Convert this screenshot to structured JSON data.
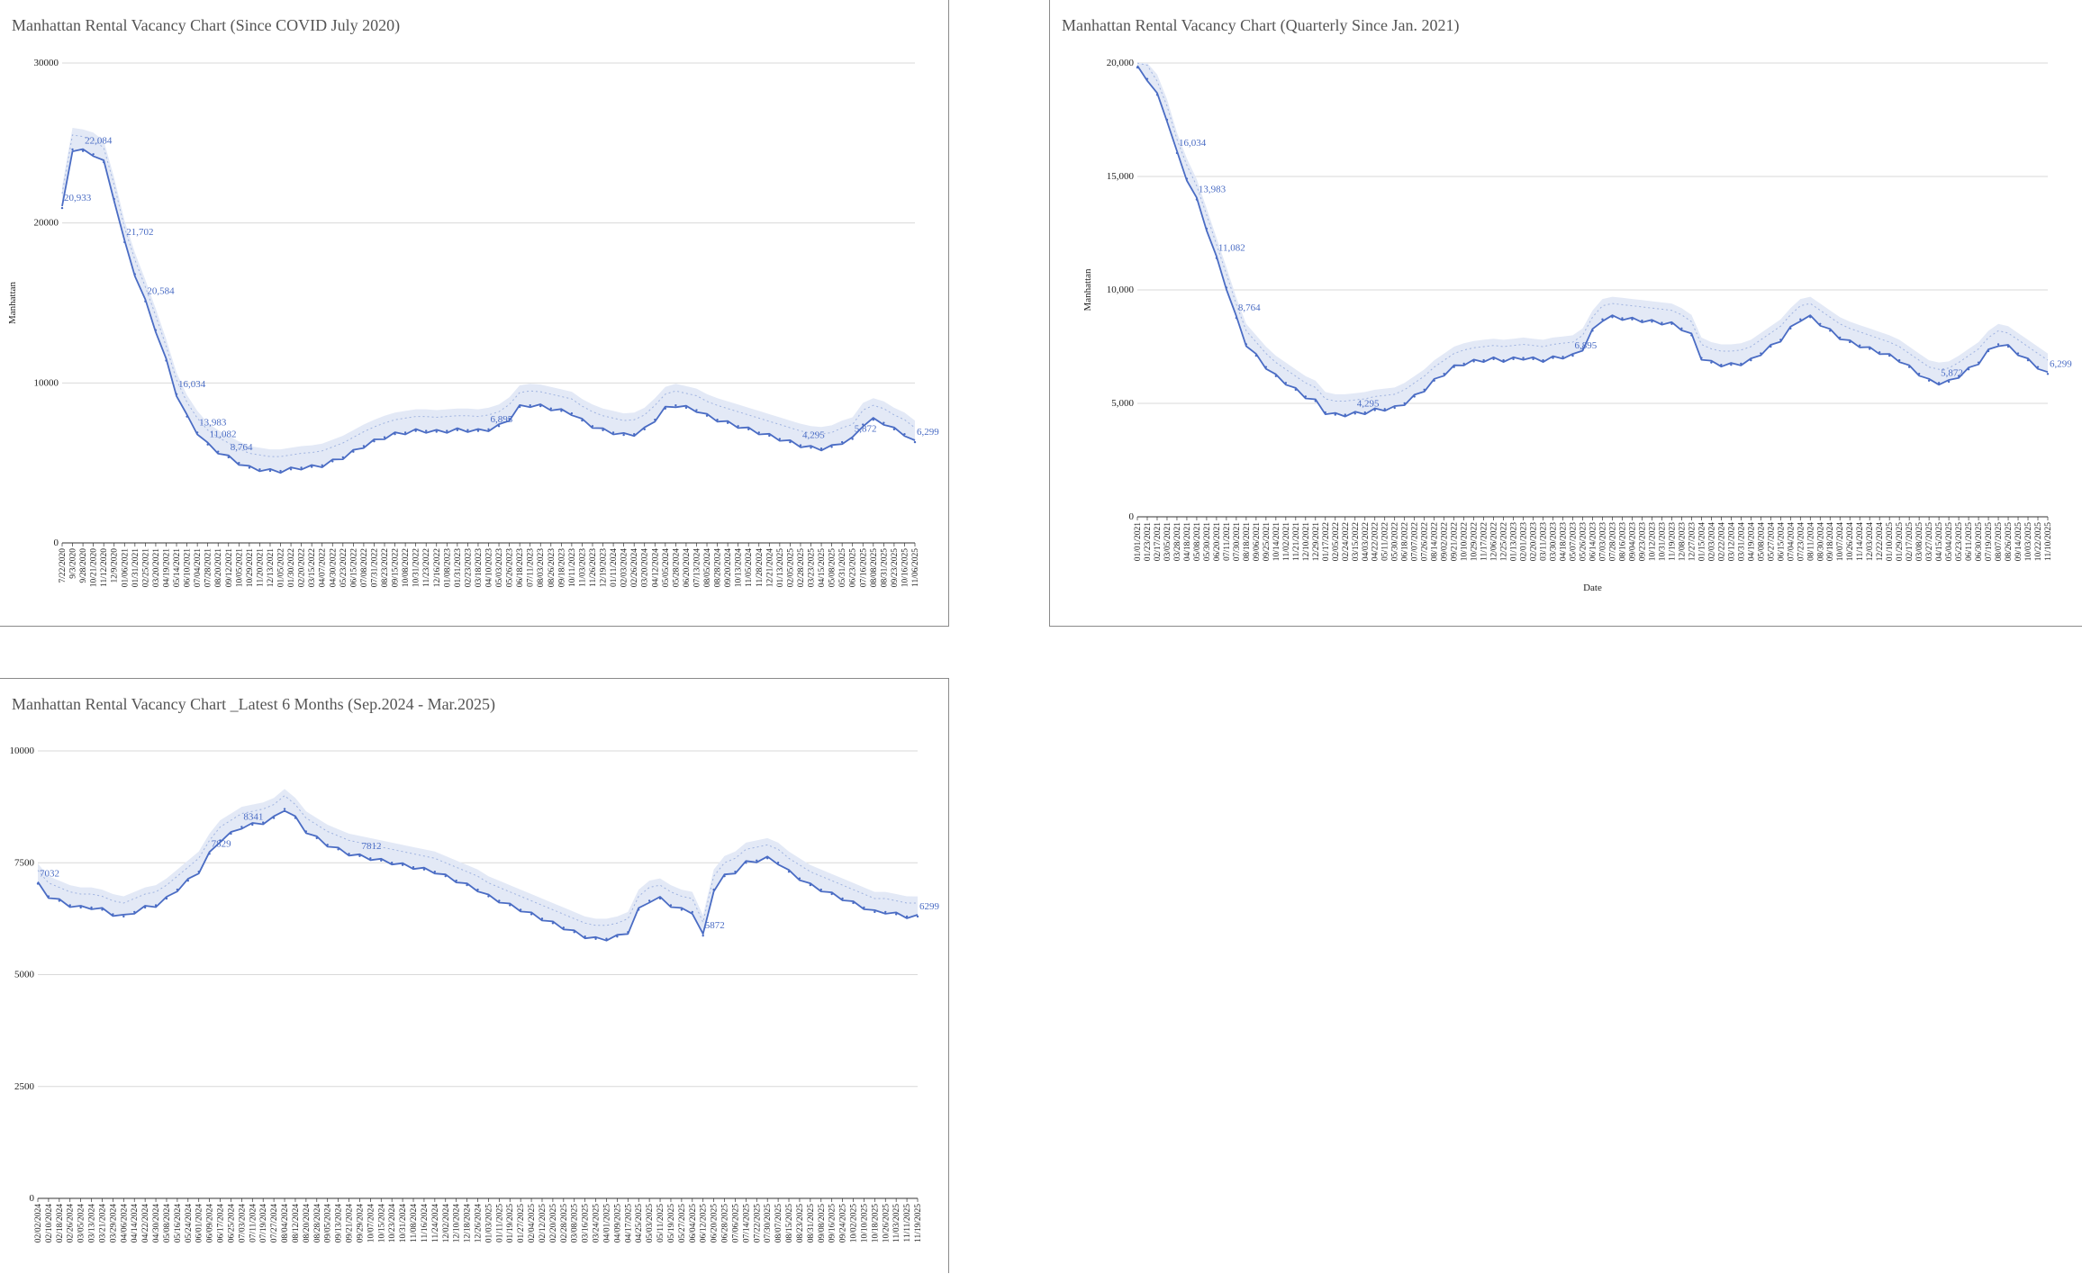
{
  "chart_data": [
    {
      "type": "line",
      "title": "Manhattan Rental Vacancy Chart (Since COVID July 2020)",
      "xlabel": "",
      "ylabel": "Manhattan",
      "ylim": [
        0,
        30000
      ],
      "yticks": [
        "0",
        "10000",
        "20000",
        "30000"
      ],
      "grid": true,
      "legend": "none",
      "line_color": "#4a6cc4",
      "band_color": "#e3e9f6",
      "x": [
        "7/22/2020",
        "9/3/2020",
        "9/28/2020",
        "10/21/2020",
        "11/12/2020",
        "12/9/2020",
        "01/06/2021",
        "01/31/2021",
        "02/25/2021",
        "03/20/2021",
        "04/19/2021",
        "05/14/2021",
        "06/10/2021",
        "07/04/2021",
        "07/28/2021",
        "08/20/2021",
        "09/12/2021",
        "10/05/2021",
        "10/29/2021",
        "11/20/2021",
        "12/13/2021",
        "01/05/2022",
        "01/30/2022",
        "02/20/2022",
        "03/15/2022",
        "04/07/2022",
        "04/30/2022",
        "05/23/2022",
        "06/15/2022",
        "07/08/2022",
        "07/31/2022",
        "08/23/2022",
        "09/15/2022",
        "10/08/2022",
        "10/31/2022",
        "11/23/2022",
        "12/16/2022",
        "01/08/2023",
        "01/31/2023",
        "02/23/2023",
        "03/18/2023",
        "04/10/2023",
        "05/03/2023",
        "05/26/2023",
        "06/18/2023",
        "07/11/2023",
        "08/03/2023",
        "08/26/2023",
        "09/18/2023",
        "10/11/2023",
        "11/03/2023",
        "11/26/2023",
        "12/19/2023",
        "01/11/2024",
        "02/03/2024",
        "02/26/2024",
        "03/20/2024",
        "04/12/2024",
        "05/05/2024",
        "05/28/2024",
        "06/20/2024",
        "07/13/2024",
        "08/05/2024",
        "08/28/2024",
        "09/20/2024",
        "10/13/2024",
        "11/05/2024",
        "11/28/2024",
        "12/21/2024",
        "01/13/2025",
        "02/05/2025",
        "02/28/2025",
        "03/23/2025",
        "04/15/2025",
        "05/08/2025",
        "05/31/2025",
        "06/23/2025",
        "07/16/2025",
        "08/08/2025",
        "08/31/2025",
        "09/23/2025",
        "10/16/2025",
        "11/06/2025"
      ],
      "series": [
        {
          "values": [
            20933,
            24600,
            24500,
            24300,
            23800,
            21500,
            18800,
            16800,
            15100,
            13300,
            11400,
            9300,
            7900,
            6900,
            6150,
            5700,
            5350,
            5000,
            4700,
            4600,
            4500,
            4500,
            4600,
            4700,
            4750,
            4850,
            5100,
            5350,
            5700,
            6050,
            6350,
            6600,
            6800,
            6900,
            7000,
            7000,
            6950,
            7000,
            7050,
            7050,
            7000,
            7100,
            7300,
            7750,
            8500,
            8600,
            8550,
            8400,
            8250,
            8100,
            7650,
            7300,
            7050,
            6900,
            6750,
            6800,
            7100,
            7700,
            8400,
            8600,
            8450,
            8300,
            7950,
            7700,
            7500,
            7300,
            7100,
            6900,
            6700,
            6500,
            6300,
            6100,
            5950,
            5900,
            6000,
            6300,
            6500,
            7400,
            7700,
            7500,
            7100,
            6800,
            6299
          ]
        }
      ],
      "data_labels": [
        "20,933",
        "22,084",
        "21,702",
        "20,584",
        "16,034",
        "13,983",
        "11,082",
        "8,764",
        "6,895",
        "4,295",
        "5,872",
        "6,299"
      ]
    },
    {
      "type": "line",
      "title": "Manhattan Rental Vacancy Chart (Quarterly Since Jan. 2021)",
      "xlabel": "Date",
      "ylabel": "Manhattan",
      "ylim": [
        0,
        20000
      ],
      "yticks": [
        "0",
        "5,000",
        "10,000",
        "15,000",
        "20,000"
      ],
      "grid": true,
      "legend": "none",
      "line_color": "#4a6cc4",
      "band_color": "#e3e9f6",
      "x": [
        "01/01/2021",
        "01/23/2021",
        "02/17/2021",
        "03/05/2021",
        "03/28/2021",
        "04/18/2021",
        "05/08/2021",
        "05/30/2021",
        "06/20/2021",
        "07/11/2021",
        "07/30/2021",
        "08/18/2021",
        "09/06/2021",
        "09/25/2021",
        "10/14/2021",
        "11/02/2021",
        "11/21/2021",
        "12/10/2021",
        "12/29/2021",
        "01/17/2022",
        "02/05/2022",
        "02/24/2022",
        "03/15/2022",
        "04/03/2022",
        "04/22/2022",
        "05/11/2022",
        "05/30/2022",
        "06/18/2022",
        "07/07/2022",
        "07/26/2022",
        "08/14/2022",
        "09/02/2022",
        "09/21/2022",
        "10/10/2022",
        "10/29/2022",
        "11/17/2022",
        "12/06/2022",
        "12/25/2022",
        "01/13/2023",
        "02/01/2023",
        "02/20/2023",
        "03/11/2023",
        "03/30/2023",
        "04/18/2023",
        "05/07/2023",
        "05/26/2023",
        "06/14/2023",
        "07/03/2023",
        "07/28/2023",
        "08/16/2023",
        "09/04/2023",
        "09/23/2023",
        "10/12/2023",
        "10/31/2023",
        "11/19/2023",
        "12/08/2023",
        "12/27/2023",
        "01/15/2024",
        "02/03/2024",
        "02/22/2024",
        "03/12/2024",
        "03/31/2024",
        "04/19/2024",
        "05/08/2024",
        "05/27/2024",
        "06/15/2024",
        "07/04/2024",
        "07/23/2024",
        "08/11/2024",
        "08/30/2024",
        "09/18/2024",
        "10/07/2024",
        "10/26/2024",
        "11/14/2024",
        "12/03/2024",
        "12/22/2024",
        "01/10/2025",
        "01/29/2025",
        "02/17/2025",
        "03/08/2025",
        "03/27/2025",
        "04/15/2025",
        "05/04/2025",
        "05/23/2025",
        "06/11/2025",
        "06/30/2025",
        "07/19/2025",
        "08/07/2025",
        "08/26/2025",
        "09/14/2025",
        "10/03/2025",
        "10/22/2025",
        "11/10/2025"
      ],
      "series": [
        {
          "values": [
            19800,
            19300,
            18600,
            17500,
            16034,
            14900,
            13983,
            12700,
            11400,
            10100,
            8764,
            7600,
            7100,
            6600,
            6200,
            5900,
            5600,
            5300,
            5100,
            4600,
            4500,
            4500,
            4550,
            4600,
            4700,
            4750,
            4800,
            5000,
            5300,
            5600,
            6000,
            6300,
            6600,
            6750,
            6850,
            6900,
            6950,
            6900,
            6950,
            7000,
            6950,
            6900,
            7000,
            7050,
            7100,
            7400,
            8200,
            8700,
            8800,
            8750,
            8700,
            8650,
            8600,
            8550,
            8500,
            8300,
            8000,
            7000,
            6800,
            6700,
            6700,
            6750,
            6900,
            7200,
            7500,
            7800,
            8300,
            8700,
            8800,
            8500,
            8200,
            7900,
            7700,
            7550,
            7400,
            7250,
            7100,
            6900,
            6600,
            6300,
            6000,
            5900,
            5950,
            6200,
            6500,
            6800,
            7300,
            7600,
            7500,
            7200,
            6900,
            6600,
            6299
          ]
        }
      ],
      "data_labels": [
        "16,034",
        "13,983",
        "11,082",
        "8,764",
        "4,295",
        "6,895",
        "5,872",
        "6,299"
      ]
    },
    {
      "type": "line",
      "title": "Manhattan Rental Vacancy Chart _Latest 6 Months (Sep.2024 - Mar.2025)",
      "xlabel": "",
      "ylabel": "",
      "ylim": [
        0,
        10000
      ],
      "yticks": [
        "0",
        "2500",
        "5000",
        "7500",
        "10000"
      ],
      "grid": true,
      "legend": "none",
      "line_color": "#4a6cc4",
      "band_color": "#e3e9f6",
      "x": [
        "02/02/2024",
        "02/10/2024",
        "02/18/2024",
        "02/26/2024",
        "03/05/2024",
        "03/13/2024",
        "03/21/2024",
        "03/29/2024",
        "04/06/2024",
        "04/14/2024",
        "04/22/2024",
        "04/30/2024",
        "05/08/2024",
        "05/16/2024",
        "05/24/2024",
        "06/01/2024",
        "06/09/2024",
        "06/17/2024",
        "06/25/2024",
        "07/03/2024",
        "07/11/2024",
        "07/19/2024",
        "07/27/2024",
        "08/04/2024",
        "08/12/2024",
        "08/20/2024",
        "08/28/2024",
        "09/05/2024",
        "09/13/2024",
        "09/21/2024",
        "09/29/2024",
        "10/07/2024",
        "10/15/2024",
        "10/23/2024",
        "10/31/2024",
        "11/08/2024",
        "11/16/2024",
        "11/24/2024",
        "12/02/2024",
        "12/10/2024",
        "12/18/2024",
        "12/26/2024",
        "01/03/2025",
        "01/11/2025",
        "01/19/2025",
        "01/27/2025",
        "02/04/2025",
        "02/12/2025",
        "02/20/2025",
        "02/28/2025",
        "03/08/2025",
        "03/16/2025",
        "03/24/2025",
        "04/01/2025",
        "04/09/2025",
        "04/17/2025",
        "04/25/2025",
        "05/03/2025",
        "05/11/2025",
        "05/19/2025",
        "05/27/2025",
        "06/04/2025",
        "06/12/2025",
        "06/20/2025",
        "06/28/2025",
        "07/06/2025",
        "07/14/2025",
        "07/22/2025",
        "07/30/2025",
        "08/07/2025",
        "08/15/2025",
        "08/23/2025",
        "08/31/2025",
        "09/08/2025",
        "09/16/2025",
        "09/24/2025",
        "10/02/2025",
        "10/10/2025",
        "10/18/2025",
        "10/26/2025",
        "11/03/2025",
        "11/11/2025",
        "11/19/2025"
      ],
      "series": [
        {
          "values": [
            7032,
            6750,
            6650,
            6550,
            6500,
            6500,
            6450,
            6350,
            6300,
            6400,
            6500,
            6550,
            6700,
            6900,
            7100,
            7300,
            7700,
            8000,
            8150,
            8300,
            8350,
            8400,
            8500,
            8700,
            8500,
            8200,
            8050,
            7900,
            7800,
            7700,
            7650,
            7600,
            7550,
            7500,
            7450,
            7400,
            7350,
            7300,
            7200,
            7100,
            7000,
            6900,
            6750,
            6650,
            6550,
            6450,
            6350,
            6250,
            6150,
            6050,
            5950,
            5850,
            5800,
            5800,
            5850,
            5950,
            6450,
            6650,
            6700,
            6550,
            6450,
            6400,
            5872,
            6900,
            7200,
            7300,
            7500,
            7550,
            7600,
            7500,
            7300,
            7150,
            7000,
            6900,
            6800,
            6700,
            6600,
            6500,
            6400,
            6400,
            6350,
            6300,
            6299
          ]
        }
      ],
      "data_labels": [
        "7032",
        "8341",
        "7829",
        "7812",
        "6299",
        "5872"
      ]
    }
  ]
}
